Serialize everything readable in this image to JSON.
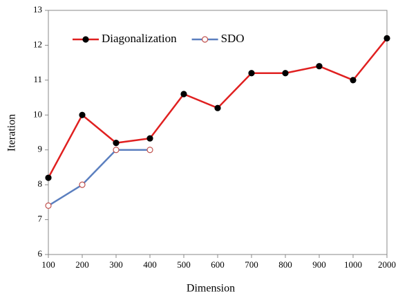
{
  "chart_data": {
    "type": "line",
    "xlabel": "Dimension",
    "ylabel": "Iteration",
    "categories": [
      "100",
      "200",
      "300",
      "400",
      "500",
      "600",
      "700",
      "800",
      "900",
      "1000",
      "2000"
    ],
    "series": [
      {
        "name": "Diagonalization",
        "color": "#e02020",
        "marker_color": "#000000",
        "marker_fill": "filled",
        "values": [
          8.2,
          10.0,
          9.2,
          9.33,
          10.6,
          10.2,
          11.2,
          11.2,
          11.4,
          11.0,
          12.2
        ]
      },
      {
        "name": "SDO",
        "color": "#5b7fbf",
        "marker_color": "#c0504d",
        "marker_fill": "open",
        "values": [
          7.4,
          8.0,
          9.0,
          9.0,
          null,
          null,
          null,
          null,
          null,
          null,
          null
        ]
      }
    ],
    "ylim": [
      6,
      13
    ],
    "yticks": [
      6,
      7,
      8,
      9,
      10,
      11,
      12,
      13
    ],
    "legend": "upper left"
  }
}
